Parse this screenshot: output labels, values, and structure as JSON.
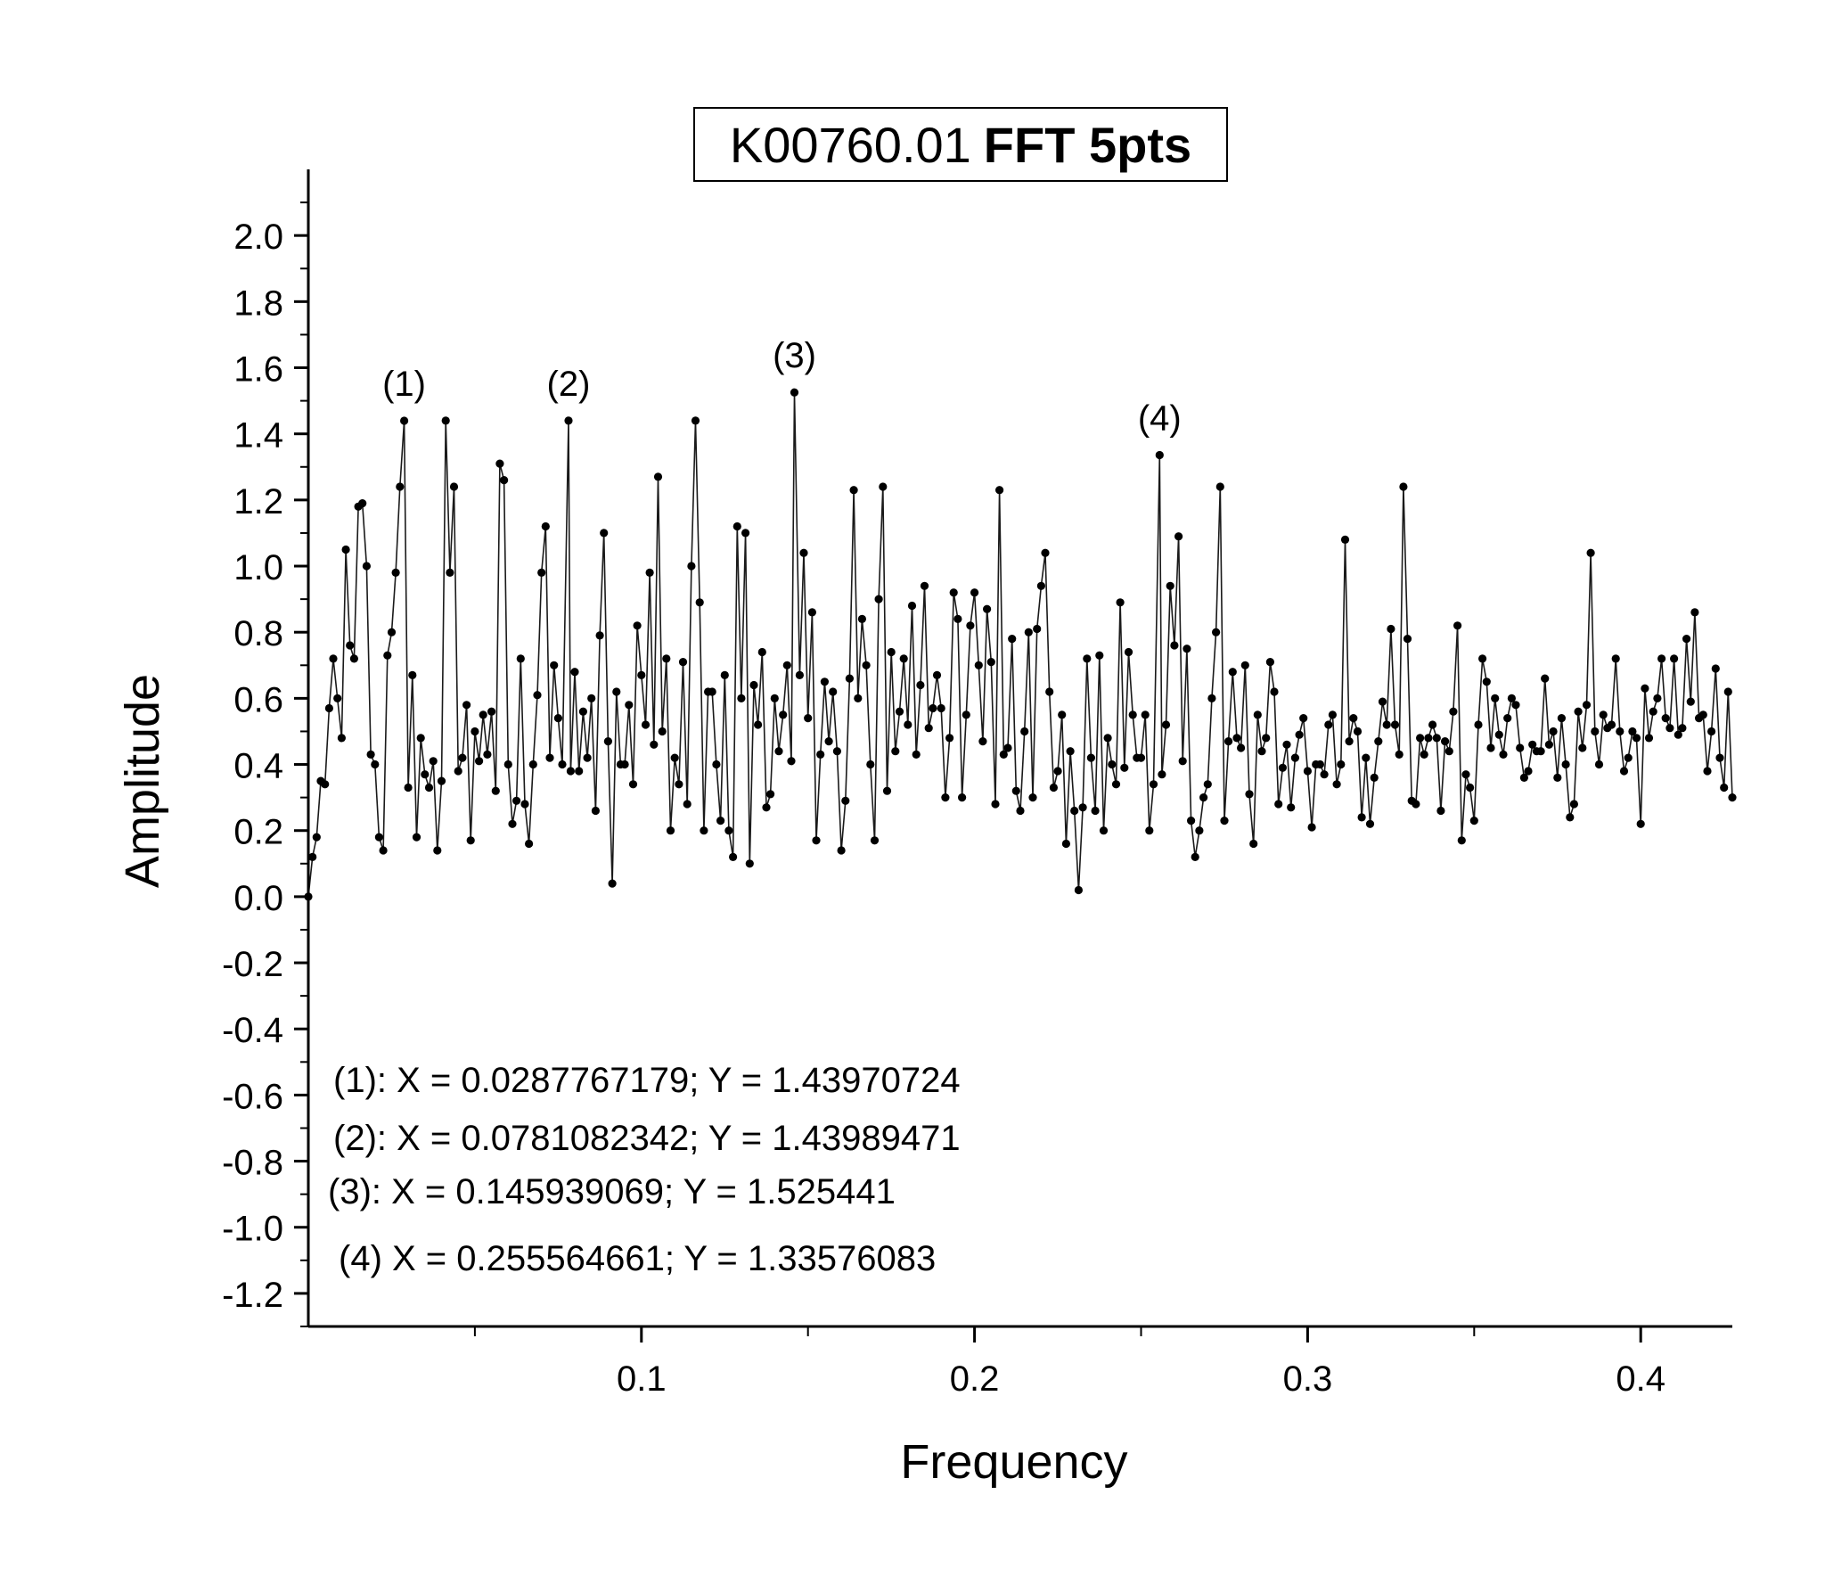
{
  "chart_data": {
    "type": "line",
    "title": "K00760.01",
    "title_bold": "FFT 5pts",
    "xlabel": "Frequency",
    "ylabel": "Amplitude",
    "xlim": [
      0.0,
      0.4275
    ],
    "ylim": [
      -1.3,
      2.2
    ],
    "x_ticks": [
      0.1,
      0.2,
      0.3,
      0.4
    ],
    "x_tick_labels": [
      "0.1",
      "0.2",
      "0.3",
      "0.4"
    ],
    "y_ticks": [
      -1.2,
      -1.0,
      -0.8,
      -0.6,
      -0.4,
      -0.2,
      0.0,
      0.2,
      0.4,
      0.6,
      0.8,
      1.0,
      1.2,
      1.4,
      1.6,
      1.8,
      2.0
    ],
    "y_tick_labels": [
      "-1.2",
      "-1.0",
      "-0.8",
      "-0.6",
      "-0.4",
      "-0.2",
      "0.0",
      "0.2",
      "0.4",
      "0.6",
      "0.8",
      "1.0",
      "1.2",
      "1.4",
      "1.6",
      "1.8",
      "2.0"
    ],
    "series": [
      {
        "marker": "circle",
        "x_start": 0.0,
        "x_step": 0.00125,
        "values": [
          0.0,
          0.12,
          0.18,
          0.35,
          0.34,
          0.57,
          0.72,
          0.6,
          0.48,
          1.05,
          0.76,
          0.72,
          1.18,
          1.19,
          1.0,
          0.43,
          0.4,
          0.18,
          0.14,
          0.73,
          0.8,
          0.98,
          1.24,
          0.52,
          0.33,
          0.67,
          0.18,
          0.48,
          0.37,
          0.33,
          0.41,
          0.14,
          0.35,
          1.44,
          0.98,
          1.24,
          0.38,
          0.42,
          0.58,
          0.17,
          0.5,
          0.41,
          0.55,
          0.43,
          0.56,
          0.32,
          1.31,
          1.26,
          0.4,
          0.22,
          0.29,
          0.72,
          0.28,
          0.16,
          0.4,
          0.61,
          0.98,
          1.12,
          0.42,
          0.7,
          0.54,
          0.4,
          0.24,
          0.38,
          0.68,
          0.38,
          0.56,
          0.42,
          0.6,
          0.26,
          0.79,
          1.1,
          0.47,
          0.04,
          0.62,
          0.4,
          0.4,
          0.58,
          0.34,
          0.82,
          0.67,
          0.52,
          0.98,
          0.46,
          1.27,
          0.5,
          0.72,
          0.2,
          0.42,
          0.34,
          0.71,
          0.28,
          1.0,
          1.44,
          0.89,
          0.2,
          0.62,
          0.62,
          0.4,
          0.23,
          0.67,
          0.2,
          0.12,
          1.12,
          0.6,
          1.1,
          0.1,
          0.64,
          0.52,
          0.74,
          0.27,
          0.31,
          0.6,
          0.44,
          0.55,
          0.7,
          0.41,
          0.29,
          0.67,
          1.04,
          0.54,
          0.86,
          0.17,
          0.43,
          0.65,
          0.47,
          0.62,
          0.44,
          0.14,
          0.29,
          0.66,
          1.23,
          0.6,
          0.84,
          0.7,
          0.4,
          0.17,
          0.9,
          1.24,
          0.32,
          0.74,
          0.44,
          0.56,
          0.72,
          0.52,
          0.88,
          0.43,
          0.64,
          0.94,
          0.51,
          0.57,
          0.67,
          0.57,
          0.3,
          0.48,
          0.92,
          0.84,
          0.3,
          0.55,
          0.82,
          0.92,
          0.7,
          0.47,
          0.87,
          0.71,
          0.28,
          1.23,
          0.43,
          0.45,
          0.78,
          0.32,
          0.26,
          0.5,
          0.8,
          0.3,
          0.81,
          0.94,
          1.04,
          0.62,
          0.33,
          0.38,
          0.55,
          0.16,
          0.44,
          0.26,
          0.02,
          0.27,
          0.72,
          0.42,
          0.26,
          0.73,
          0.2,
          0.48,
          0.4,
          0.34,
          0.89,
          0.39,
          0.74,
          0.55,
          0.42,
          0.42,
          0.55,
          0.2,
          0.34,
          0.66,
          0.37,
          0.52,
          0.94,
          0.76,
          1.09,
          0.41,
          0.75,
          0.23,
          0.12,
          0.2,
          0.3,
          0.34,
          0.6,
          0.8,
          1.24,
          0.23,
          0.47,
          0.68,
          0.48,
          0.45,
          0.7,
          0.31,
          0.16,
          0.55,
          0.44,
          0.48,
          0.71,
          0.62,
          0.28,
          0.39,
          0.46,
          0.27,
          0.42,
          0.49,
          0.54,
          0.38,
          0.21,
          0.4,
          0.4,
          0.37,
          0.52,
          0.55,
          0.34,
          0.4,
          1.08,
          0.47,
          0.54,
          0.5,
          0.24,
          0.42,
          0.22,
          0.36,
          0.47,
          0.59,
          0.52,
          0.81,
          0.52,
          0.43,
          1.24,
          0.78,
          0.29,
          0.28,
          0.48,
          0.43,
          0.48,
          0.52,
          0.48,
          0.26,
          0.47,
          0.44,
          0.56,
          0.82,
          0.17,
          0.37,
          0.33,
          0.23,
          0.52,
          0.72,
          0.65,
          0.45,
          0.6,
          0.49,
          0.43,
          0.54,
          0.6,
          0.58,
          0.45,
          0.36,
          0.38,
          0.46,
          0.44,
          0.44,
          0.66,
          0.46,
          0.5,
          0.36,
          0.54,
          0.4,
          0.24,
          0.28,
          0.56,
          0.45,
          0.58,
          1.04,
          0.5,
          0.4,
          0.55,
          0.51,
          0.52,
          0.72,
          0.5,
          0.38,
          0.42,
          0.5,
          0.48,
          0.22,
          0.63,
          0.48,
          0.56,
          0.6,
          0.72,
          0.54,
          0.51,
          0.72,
          0.49,
          0.51,
          0.78,
          0.59,
          0.86,
          0.54,
          0.55,
          0.38,
          0.5,
          0.69,
          0.42,
          0.33,
          0.62,
          0.3,
          0.41,
          0.59,
          0.45,
          0.56,
          0.24,
          0.45,
          0.47,
          0.51,
          0.88,
          0.52,
          0.54,
          0.63,
          0.42,
          0.37,
          0.56,
          0.53,
          0.41,
          0.67,
          0.49,
          0.55,
          0.6,
          0.44,
          0.53,
          0.4,
          0.49,
          0.41,
          0.42,
          0.55,
          0.52,
          0.48,
          0.47,
          0.56,
          0.42,
          0.34,
          0.55,
          0.5,
          0.57,
          0.55,
          0.77,
          0.46,
          0.37,
          0.62,
          0.53,
          0.5,
          0.47,
          0.54,
          0.52,
          0.43,
          0.42,
          0.59,
          0.47,
          0.54,
          0.45,
          0.5,
          0.62,
          0.36,
          0.55,
          0.43,
          0.52,
          0.41,
          0.48,
          0.52,
          0.48,
          0.56,
          0.44,
          0.5,
          0.37,
          0.52,
          0.52,
          0.48,
          0.56,
          0.43,
          0.47,
          0.49,
          0.5,
          0.53,
          0.54,
          0.46,
          0.48,
          0.56,
          0.46,
          0.5,
          0.48,
          0.45,
          0.52,
          0.51,
          0.52,
          0.49,
          0.48,
          0.5,
          0.46,
          0.47,
          0.55,
          0.54,
          0.5,
          0.47,
          0.53,
          0.55,
          0.48,
          0.5,
          0.52,
          0.47,
          0.48,
          0.45,
          0.48,
          0.5,
          0.51,
          0.47,
          0.53,
          0.56,
          0.49,
          0.52,
          0.44,
          0.48,
          0.5,
          0.54,
          0.5,
          0.47,
          0.53,
          0.5,
          0.5,
          0.48,
          0.5,
          0.46,
          0.52,
          0.5,
          0.49,
          0.53,
          0.51,
          0.47,
          0.5,
          0.48,
          0.52,
          0.5,
          0.45,
          0.5,
          0.52,
          0.5,
          0.49,
          0.48,
          0.52,
          0.5,
          0.51,
          0.49,
          0.5,
          0.51,
          0.48,
          0.5,
          0.52,
          0.49,
          0.5,
          0.5,
          0.51,
          0.49,
          0.5,
          0.51,
          0.5,
          0.49,
          0.5,
          0.5,
          0.51,
          0.5,
          0.5,
          0.5,
          0.49,
          0.5,
          0.5,
          0.5
        ]
      }
    ],
    "peaks": [
      {
        "label": "(1)",
        "x": 0.0287767179,
        "y": 1.43970724
      },
      {
        "label": "(2)",
        "x": 0.0781082342,
        "y": 1.43989471
      },
      {
        "label": "(3)",
        "x": 0.145939069,
        "y": 1.525441
      },
      {
        "label": "(4)",
        "x": 0.255564661,
        "y": 1.33576083
      }
    ],
    "annotations": [
      "(1): X = 0.0287767179; Y = 1.43970724",
      "(2):  X = 0.0781082342; Y = 1.43989471",
      "(3):  X = 0.145939069; Y = 1.525441",
      "(4) X = 0.255564661; Y = 1.33576083"
    ],
    "grid": false,
    "legend": "none",
    "colors": {
      "line": "#1a1a1a",
      "marker": "#000000",
      "axis": "#000000"
    }
  }
}
